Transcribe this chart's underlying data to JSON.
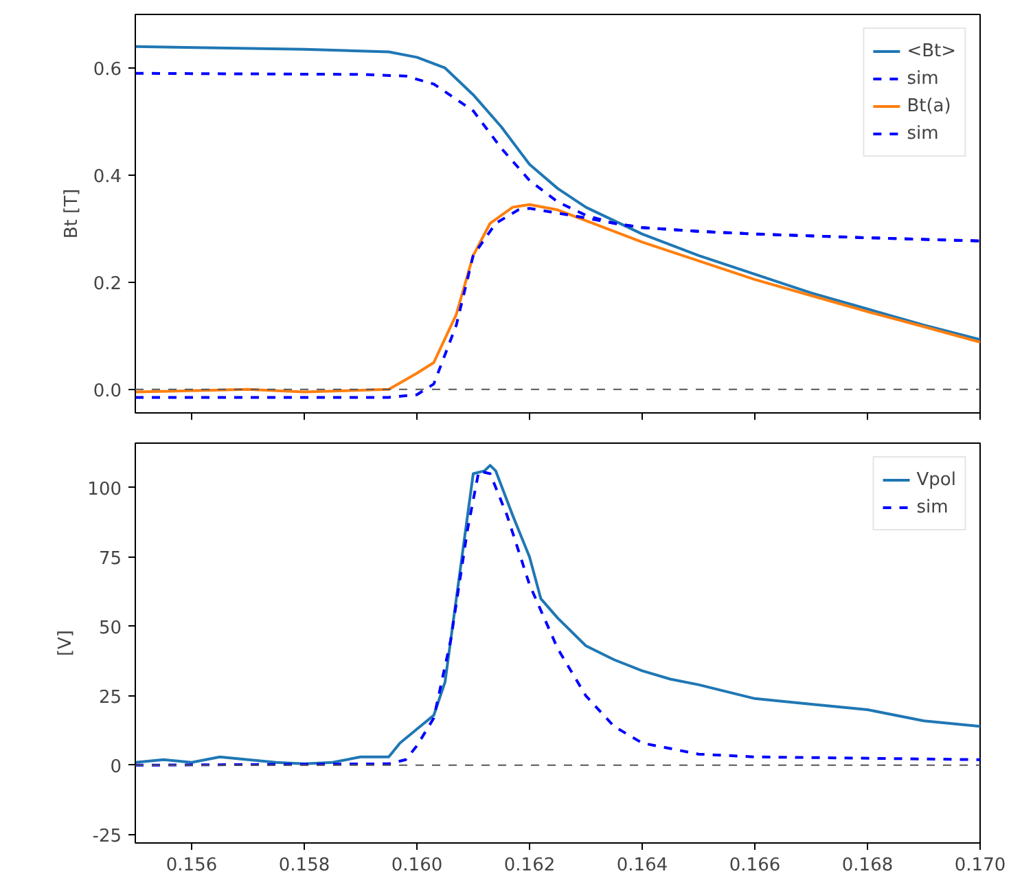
{
  "chart_data": [
    {
      "type": "line",
      "ylabel": "Bt [T]",
      "xlim": [
        0.155,
        0.17
      ],
      "ylim": [
        -0.044,
        0.7
      ],
      "xticks": [
        {
          "value": 0.156,
          "label": null
        },
        {
          "value": 0.158,
          "label": null
        },
        {
          "value": 0.16,
          "label": null
        },
        {
          "value": 0.162,
          "label": null
        },
        {
          "value": 0.164,
          "label": null
        },
        {
          "value": 0.166,
          "label": null
        },
        {
          "value": 0.168,
          "label": null
        },
        {
          "value": 0.17,
          "label": null
        }
      ],
      "yticks": [
        {
          "value": 0,
          "label": "0.0"
        },
        {
          "value": 0.2,
          "label": "0.2"
        },
        {
          "value": 0.4,
          "label": "0.4"
        },
        {
          "value": 0.6,
          "label": "0.6"
        }
      ],
      "tick_labels": "y",
      "grid": false,
      "legend": "top right",
      "marker": "none",
      "ref_lines": [
        {
          "axis": "y",
          "value": 0,
          "label": null,
          "color": "#555555",
          "line_style": "dashed"
        }
      ],
      "series": [
        {
          "name": "<Bt>",
          "color": "#1f77b4",
          "line_style": "solid",
          "x": [
            0.155,
            0.158,
            0.1595,
            0.16,
            0.1605,
            0.161,
            0.1615,
            0.162,
            0.1625,
            0.163,
            0.164,
            0.165,
            0.166,
            0.167,
            0.168,
            0.169,
            0.17
          ],
          "values": [
            0.64,
            0.635,
            0.63,
            0.62,
            0.6,
            0.55,
            0.49,
            0.42,
            0.375,
            0.34,
            0.29,
            0.25,
            0.215,
            0.18,
            0.15,
            0.12,
            0.093
          ]
        },
        {
          "name": "sim",
          "color": "#0000ff",
          "line_style": "dashed",
          "x": [
            0.155,
            0.159,
            0.1598,
            0.1603,
            0.161,
            0.1615,
            0.162,
            0.1625,
            0.163,
            0.1635,
            0.164,
            0.165,
            0.166,
            0.168,
            0.17
          ],
          "values": [
            0.59,
            0.588,
            0.585,
            0.57,
            0.52,
            0.45,
            0.39,
            0.35,
            0.325,
            0.31,
            0.302,
            0.295,
            0.29,
            0.283,
            0.277
          ]
        },
        {
          "name": "Bt(a)",
          "color": "#ff7f0e",
          "line_style": "solid",
          "x": [
            0.155,
            0.157,
            0.158,
            0.1595,
            0.16,
            0.1603,
            0.1607,
            0.161,
            0.1613,
            0.1617,
            0.162,
            0.1625,
            0.163,
            0.164,
            0.165,
            0.166,
            0.167,
            0.168,
            0.169,
            0.17
          ],
          "values": [
            -0.005,
            0.0,
            -0.005,
            0.0,
            0.03,
            0.05,
            0.14,
            0.25,
            0.31,
            0.34,
            0.345,
            0.335,
            0.315,
            0.275,
            0.24,
            0.205,
            0.175,
            0.145,
            0.117,
            0.088
          ]
        },
        {
          "name": "sim",
          "color": "#0000ff",
          "line_style": "dashed",
          "x": [
            0.155,
            0.1595,
            0.16,
            0.1603,
            0.1607,
            0.161,
            0.1614,
            0.1618,
            0.162,
            0.163,
            0.1635,
            0.164,
            0.165,
            0.166,
            0.168,
            0.17
          ],
          "values": [
            -0.015,
            -0.015,
            -0.01,
            0.01,
            0.12,
            0.25,
            0.31,
            0.335,
            0.338,
            0.32,
            0.31,
            0.302,
            0.295,
            0.29,
            0.283,
            0.277
          ]
        }
      ]
    },
    {
      "type": "line",
      "ylabel": "[V]",
      "xlim": [
        0.155,
        0.17
      ],
      "ylim": [
        -28,
        116
      ],
      "xticks": [
        {
          "value": 0.156,
          "label": "0.156"
        },
        {
          "value": 0.158,
          "label": "0.158"
        },
        {
          "value": 0.16,
          "label": "0.160"
        },
        {
          "value": 0.162,
          "label": "0.162"
        },
        {
          "value": 0.164,
          "label": "0.164"
        },
        {
          "value": 0.166,
          "label": "0.166"
        },
        {
          "value": 0.168,
          "label": "0.168"
        },
        {
          "value": 0.17,
          "label": "0.170"
        }
      ],
      "yticks": [
        -25,
        0,
        25,
        50,
        75,
        100
      ],
      "grid": false,
      "legend": "top right",
      "marker": "none",
      "ref_lines": [
        {
          "axis": "y",
          "value": 0,
          "label": null,
          "color": "#555555",
          "line_style": "dashed"
        }
      ],
      "series": [
        {
          "name": "Vpol",
          "color": "#1f77b4",
          "line_style": "solid",
          "x": [
            0.155,
            0.1555,
            0.156,
            0.1565,
            0.157,
            0.1575,
            0.158,
            0.1585,
            0.159,
            0.1595,
            0.1597,
            0.16,
            0.1603,
            0.1605,
            0.1608,
            0.161,
            0.1612,
            0.1613,
            0.1614,
            0.1617,
            0.162,
            0.1622,
            0.1625,
            0.163,
            0.1635,
            0.164,
            0.1645,
            0.165,
            0.166,
            0.167,
            0.168,
            0.169,
            0.17
          ],
          "values": [
            1,
            2,
            1,
            3,
            2,
            1,
            0.5,
            1,
            3,
            3,
            8,
            13,
            18,
            30,
            75,
            105,
            106,
            108,
            106,
            90,
            75,
            60,
            53,
            43,
            38,
            34,
            31,
            29,
            24,
            22,
            20,
            16,
            14
          ]
        },
        {
          "name": "sim",
          "color": "#0000ff",
          "line_style": "dashed",
          "x": [
            0.155,
            0.1595,
            0.1598,
            0.16,
            0.1603,
            0.1606,
            0.1609,
            0.1611,
            0.1613,
            0.1616,
            0.162,
            0.1625,
            0.163,
            0.1635,
            0.164,
            0.165,
            0.166,
            0.17
          ],
          "values": [
            0,
            0.5,
            2,
            7,
            17,
            45,
            85,
            106,
            105,
            90,
            65,
            42,
            25,
            14,
            8,
            4,
            3,
            2
          ]
        }
      ]
    }
  ]
}
